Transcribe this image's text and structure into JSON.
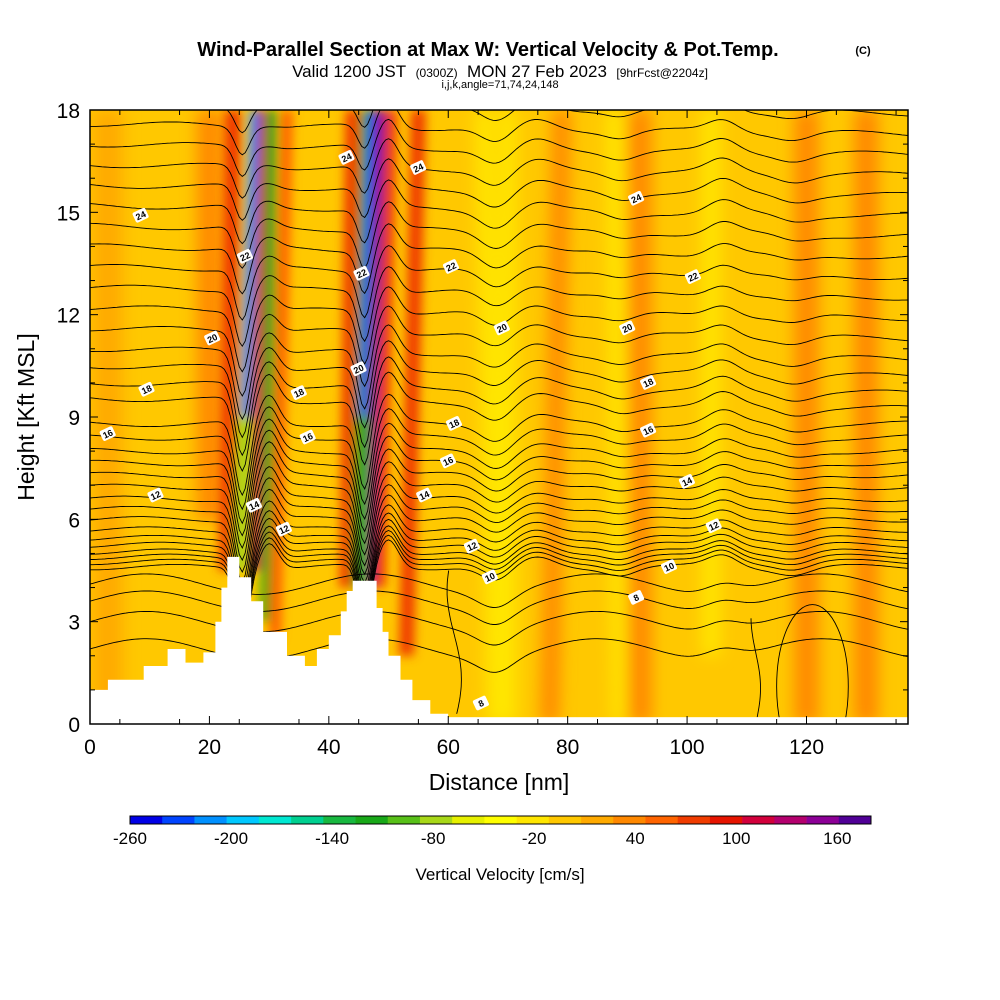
{
  "chart_data": {
    "type": "heatmap",
    "title": "Wind-Parallel Section at Max W: Vertical Velocity & Pot.Temp.",
    "title_mark": "(C)",
    "subtitle_main": "Valid 1200 JST",
    "subtitle_utc": "(0300Z)",
    "subtitle_date": "MON 27 Feb 2023",
    "subtitle_fcst": "[9hrFcst@2204z]",
    "subtitle_indices": "i,j,k,angle=71,74,24,148",
    "xlabel": "Distance [nm]",
    "ylabel": "Height [Kft MSL]",
    "xlim": [
      0,
      137
    ],
    "ylim": [
      0,
      18
    ],
    "x_ticks": [
      0,
      20,
      40,
      60,
      80,
      100,
      120
    ],
    "y_ticks": [
      0,
      3,
      6,
      9,
      12,
      15,
      18
    ],
    "colorbar": {
      "label": "Vertical Velocity [cm/s]",
      "range": [
        -260,
        180
      ],
      "tick_values": [
        -260,
        -200,
        -140,
        -80,
        -20,
        40,
        100,
        160
      ],
      "tick_labels": [
        "-260",
        "-200",
        "-140",
        "-80",
        "-20",
        "40",
        "100",
        "160"
      ],
      "colors": [
        "#0000e6",
        "#0044ff",
        "#0090ff",
        "#00c8ff",
        "#00e8d2",
        "#00d090",
        "#18b840",
        "#18a818",
        "#58c018",
        "#a8d818",
        "#e6f000",
        "#ffff00",
        "#ffe600",
        "#ffc800",
        "#ffaa00",
        "#ff8800",
        "#ff6400",
        "#f03c00",
        "#e61400",
        "#d2003c",
        "#b4006e",
        "#8c0096",
        "#500096"
      ]
    },
    "terrain_profile": [
      [
        0,
        1.0
      ],
      [
        3,
        1.0
      ],
      [
        3,
        1.3
      ],
      [
        9,
        1.3
      ],
      [
        9,
        1.7
      ],
      [
        13,
        1.7
      ],
      [
        13,
        2.2
      ],
      [
        16,
        2.2
      ],
      [
        16,
        1.8
      ],
      [
        19,
        1.8
      ],
      [
        19,
        2.1
      ],
      [
        21,
        2.1
      ],
      [
        21,
        3.0
      ],
      [
        22,
        3.0
      ],
      [
        22,
        4.0
      ],
      [
        23,
        4.0
      ],
      [
        23,
        4.9
      ],
      [
        25,
        4.9
      ],
      [
        25,
        4.3
      ],
      [
        27,
        4.3
      ],
      [
        27,
        3.6
      ],
      [
        29,
        3.6
      ],
      [
        29,
        2.7
      ],
      [
        33,
        2.7
      ],
      [
        33,
        2.0
      ],
      [
        36,
        2.0
      ],
      [
        36,
        1.7
      ],
      [
        38,
        1.7
      ],
      [
        38,
        2.2
      ],
      [
        40,
        2.2
      ],
      [
        40,
        2.6
      ],
      [
        42,
        2.6
      ],
      [
        42,
        3.3
      ],
      [
        43,
        3.3
      ],
      [
        43,
        3.9
      ],
      [
        44,
        3.9
      ],
      [
        44,
        4.2
      ],
      [
        48,
        4.2
      ],
      [
        48,
        3.4
      ],
      [
        49,
        3.4
      ],
      [
        49,
        2.7
      ],
      [
        50,
        2.7
      ],
      [
        50,
        2.0
      ],
      [
        52,
        2.0
      ],
      [
        52,
        1.3
      ],
      [
        54,
        1.3
      ],
      [
        54,
        0.7
      ],
      [
        57,
        0.7
      ],
      [
        57,
        0.3
      ],
      [
        60,
        0.3
      ],
      [
        60,
        0.0
      ]
    ],
    "isentrope_labels": [
      {
        "text": "24",
        "x": 8.5,
        "y": 14.9
      },
      {
        "text": "24",
        "x": 43,
        "y": 16.6
      },
      {
        "text": "24",
        "x": 55,
        "y": 16.3
      },
      {
        "text": "24",
        "x": 91.5,
        "y": 15.4
      },
      {
        "text": "22",
        "x": 26,
        "y": 13.7
      },
      {
        "text": "22",
        "x": 45.5,
        "y": 13.2
      },
      {
        "text": "22",
        "x": 60.5,
        "y": 13.4
      },
      {
        "text": "22",
        "x": 101,
        "y": 13.1
      },
      {
        "text": "20",
        "x": 20.5,
        "y": 11.3
      },
      {
        "text": "20",
        "x": 45,
        "y": 10.4
      },
      {
        "text": "20",
        "x": 69,
        "y": 11.6
      },
      {
        "text": "20",
        "x": 90,
        "y": 11.6
      },
      {
        "text": "18",
        "x": 9.5,
        "y": 9.8
      },
      {
        "text": "18",
        "x": 35,
        "y": 9.7
      },
      {
        "text": "18",
        "x": 61,
        "y": 8.8
      },
      {
        "text": "18",
        "x": 93.5,
        "y": 10.0
      },
      {
        "text": "16",
        "x": 3,
        "y": 8.5
      },
      {
        "text": "16",
        "x": 36.5,
        "y": 8.4
      },
      {
        "text": "16",
        "x": 60,
        "y": 7.7
      },
      {
        "text": "16",
        "x": 93.5,
        "y": 8.6
      },
      {
        "text": "14",
        "x": 27.5,
        "y": 6.4
      },
      {
        "text": "14",
        "x": 56,
        "y": 6.7
      },
      {
        "text": "14",
        "x": 100,
        "y": 7.1
      },
      {
        "text": "12",
        "x": 11,
        "y": 6.7
      },
      {
        "text": "12",
        "x": 32.5,
        "y": 5.7
      },
      {
        "text": "12",
        "x": 64,
        "y": 5.2
      },
      {
        "text": "12",
        "x": 104.5,
        "y": 5.8
      },
      {
        "text": "10",
        "x": 67,
        "y": 4.3
      },
      {
        "text": "10",
        "x": 97,
        "y": 4.6
      },
      {
        "text": "8",
        "x": 91.5,
        "y": 3.7
      },
      {
        "text": "8",
        "x": 65.5,
        "y": 0.6
      }
    ]
  }
}
